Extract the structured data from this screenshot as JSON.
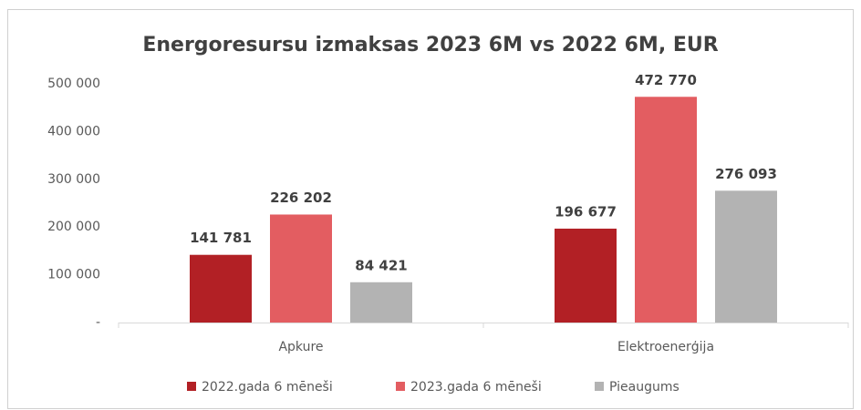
{
  "chart_data": {
    "type": "bar",
    "title": "Energoresursu izmaksas 2023 6M vs 2022 6M, EUR",
    "categories": [
      "Apkure",
      "Elektroenerģija"
    ],
    "series": [
      {
        "name": "2022.gada 6 mēneši",
        "color": "#b22025",
        "values": [
          141781,
          196677
        ],
        "value_labels": [
          "141 781",
          "196 677"
        ]
      },
      {
        "name": "2023.gada 6 mēneši",
        "color": "#e35d61",
        "values": [
          226202,
          472770
        ],
        "value_labels": [
          "226 202",
          "472 770"
        ]
      },
      {
        "name": "Pieaugums",
        "color": "#b3b3b3",
        "values": [
          84421,
          276093
        ],
        "value_labels": [
          "84 421",
          "276 093"
        ]
      }
    ],
    "ylim": [
      0,
      500000
    ],
    "yticks": [
      {
        "value": 0,
        "label": "-"
      },
      {
        "value": 100000,
        "label": "100 000"
      },
      {
        "value": 200000,
        "label": "200 000"
      },
      {
        "value": 300000,
        "label": "300 000"
      },
      {
        "value": 400000,
        "label": "400 000"
      },
      {
        "value": 500000,
        "label": "500 000"
      }
    ],
    "grid": false,
    "legend": "bottom"
  }
}
